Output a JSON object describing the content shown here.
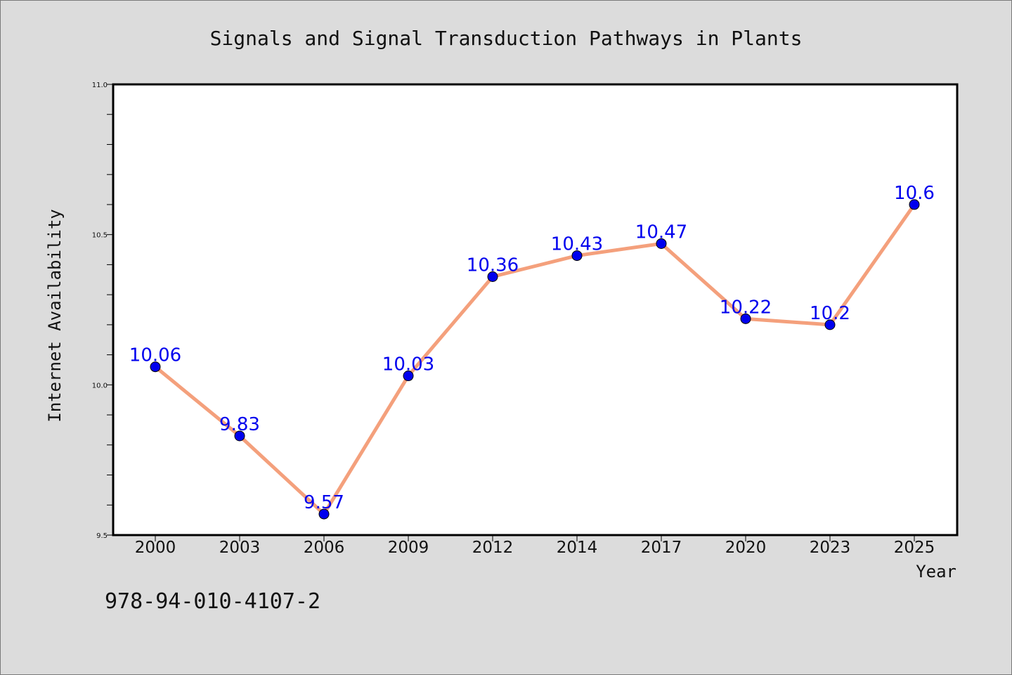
{
  "isbn": "978-94-010-4107-2",
  "colors": {
    "background": "#dcdcdc",
    "plot_background": "#ffffff",
    "line": "#f4a07c",
    "marker": "#0000ee",
    "label": "#0000ee"
  },
  "chart_data": {
    "type": "line",
    "title": "Signals and Signal Transduction Pathways in Plants",
    "xlabel": "Year",
    "ylabel": "Internet Availability",
    "categories": [
      "2000",
      "2003",
      "2006",
      "2009",
      "2012",
      "2014",
      "2017",
      "2020",
      "2023",
      "2025"
    ],
    "values": [
      10.06,
      9.83,
      9.57,
      10.03,
      10.36,
      10.43,
      10.47,
      10.22,
      10.2,
      10.6
    ],
    "data_labels": [
      "10.06",
      "9.83",
      "9.57",
      "10.03",
      "10.36",
      "10.43",
      "10.47",
      "10.22",
      "10.2",
      "10.6"
    ],
    "ylim": [
      9.5,
      11.0
    ],
    "yticks": [
      "9.5",
      "10.0",
      "10.5",
      "11.0"
    ],
    "ytick_values": [
      9.5,
      10.0,
      10.5,
      11.0
    ],
    "minor_ytick_step": 0.1,
    "grid": false,
    "marker": "circle"
  }
}
